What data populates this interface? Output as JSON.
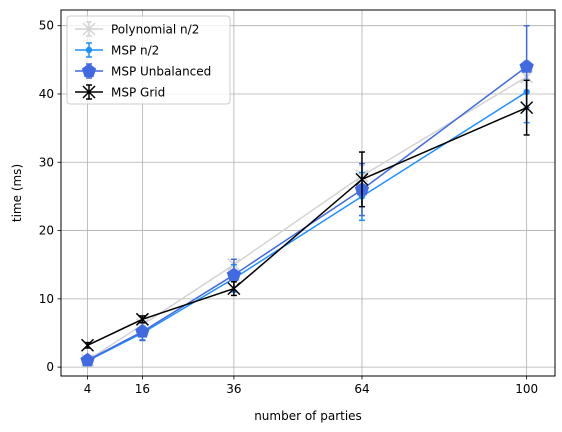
{
  "chart_data": {
    "type": "line",
    "xlabel": "number of parties",
    "ylabel": "time (ms)",
    "xticks": [
      4,
      16,
      36,
      64,
      100
    ],
    "yticks": [
      0,
      10,
      20,
      30,
      40,
      50
    ],
    "xlim": [
      -1.8,
      106.2
    ],
    "ylim": [
      -1.3,
      52.3
    ],
    "grid": true,
    "legend_position": "upper-left",
    "series": [
      {
        "name": "Polynomial n/2",
        "color": "#d3d3d3",
        "marker": "x",
        "x": [
          4,
          16,
          36,
          64,
          100
        ],
        "y": [
          1.0,
          6.2,
          15.0,
          28.0,
          42.5
        ],
        "err": [
          0.2,
          0.4,
          0.8,
          1.5,
          2.0
        ]
      },
      {
        "name": "MSP n/2",
        "color": "#1e90ff",
        "marker": "dot",
        "x": [
          4,
          16,
          36,
          64,
          100
        ],
        "y": [
          0.9,
          5.0,
          13.0,
          25.0,
          40.3
        ],
        "err": [
          0.3,
          1.0,
          2.0,
          3.5,
          4.5
        ]
      },
      {
        "name": "MSP Unbalanced",
        "color": "#4169e1",
        "marker": "pentagon",
        "x": [
          4,
          16,
          36,
          64,
          100
        ],
        "y": [
          1.0,
          5.2,
          13.5,
          26.0,
          44.0
        ],
        "err": [
          0.4,
          1.3,
          2.3,
          3.8,
          6.0
        ]
      },
      {
        "name": "MSP Grid",
        "color": "#000000",
        "marker": "x",
        "x": [
          4,
          16,
          36,
          64,
          100
        ],
        "y": [
          3.2,
          7.0,
          11.5,
          27.5,
          38.0
        ],
        "err": [
          0.4,
          0.5,
          1.0,
          4.0,
          4.0
        ]
      }
    ]
  }
}
